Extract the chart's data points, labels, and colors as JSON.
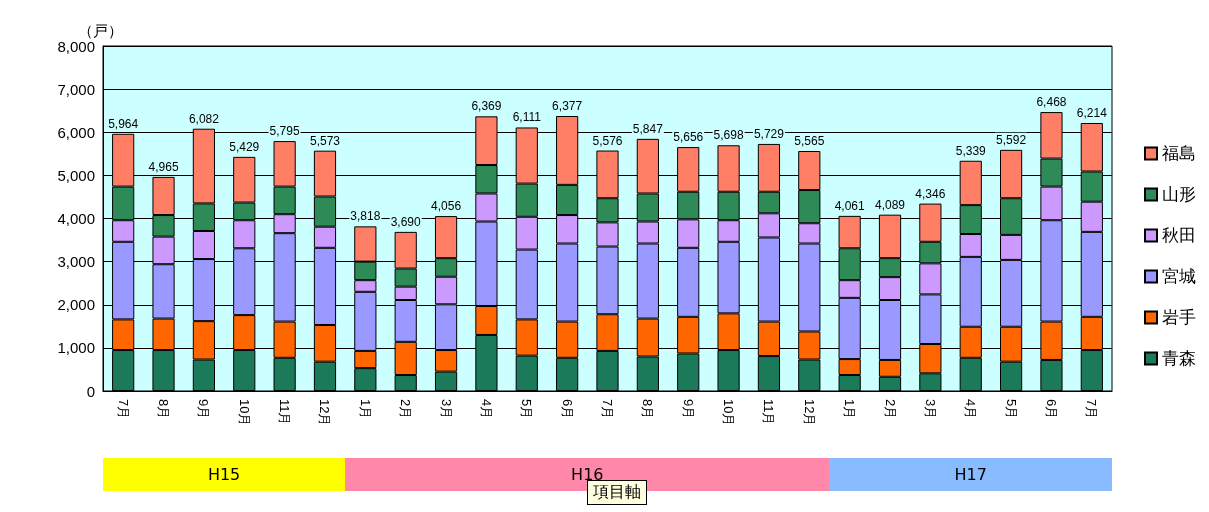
{
  "chart_data": {
    "type": "bar",
    "stacked": true,
    "ylabel": "（戸）",
    "categories": [
      "7月",
      "8月",
      "9月",
      "10月",
      "11月",
      "12月",
      "1月",
      "2月",
      "3月",
      "4月",
      "5月",
      "6月",
      "7月",
      "8月",
      "9月",
      "10月",
      "11月",
      "12月",
      "1月",
      "2月",
      "3月",
      "4月",
      "5月",
      "6月",
      "7月"
    ],
    "series": [
      {
        "name": "青森",
        "color": "#1a7a5a",
        "values": [
          950,
          950,
          730,
          950,
          770,
          680,
          530,
          370,
          450,
          1300,
          820,
          770,
          930,
          800,
          870,
          950,
          810,
          730,
          370,
          330,
          410,
          770,
          680,
          720,
          950
        ]
      },
      {
        "name": "岩手",
        "color": "#ff6600",
        "values": [
          710,
          730,
          890,
          810,
          840,
          850,
          400,
          770,
          500,
          670,
          840,
          840,
          850,
          880,
          850,
          850,
          800,
          650,
          370,
          390,
          680,
          720,
          810,
          890,
          770
        ]
      },
      {
        "name": "宮城",
        "color": "#9999ff",
        "values": [
          1800,
          1260,
          1440,
          1550,
          2050,
          1790,
          1370,
          970,
          1060,
          1960,
          1620,
          1810,
          1570,
          1740,
          1600,
          1660,
          1950,
          2040,
          1420,
          1390,
          1150,
          1620,
          1550,
          2350,
          1970
        ]
      },
      {
        "name": "秋田",
        "color": "#cc99ff",
        "values": [
          500,
          640,
          650,
          650,
          440,
          490,
          270,
          310,
          640,
          650,
          760,
          660,
          560,
          510,
          660,
          500,
          560,
          470,
          410,
          530,
          720,
          530,
          580,
          780,
          700
        ]
      },
      {
        "name": "山形",
        "color": "#2e8b57",
        "values": [
          780,
          500,
          640,
          410,
          640,
          700,
          430,
          420,
          430,
          660,
          770,
          700,
          560,
          650,
          640,
          660,
          500,
          770,
          740,
          440,
          500,
          670,
          850,
          650,
          700
        ]
      },
      {
        "name": "福島",
        "color": "#ff7f66",
        "values": [
          1224,
          885,
          1732,
          1059,
          1055,
          1063,
          818,
          850,
          976,
          1129,
          1301,
          1597,
          1106,
          1267,
          1036,
          1078,
          1109,
          905,
          751,
          1009,
          886,
          1029,
          1122,
          1078,
          1124
        ]
      }
    ],
    "totals": [
      "5,964",
      "4,965",
      "6,082",
      "5,429",
      "5,795",
      "5,573",
      "3,818",
      "3,690",
      "4,056",
      "6,369",
      "6,111",
      "6,377",
      "5,576",
      "5,847",
      "5,656",
      "5,698",
      "5,729",
      "5,565",
      "4,061",
      "4,089",
      "4,346",
      "5,339",
      "5,592",
      "6,468",
      "6,214"
    ],
    "ylim": [
      0,
      8000
    ],
    "yticks": [
      {
        "value": 0,
        "label": "0"
      },
      {
        "value": 1000,
        "label": "1,000"
      },
      {
        "value": 2000,
        "label": "2,000"
      },
      {
        "value": 3000,
        "label": "3,000"
      },
      {
        "value": 4000,
        "label": "4,000"
      },
      {
        "value": 5000,
        "label": "5,000"
      },
      {
        "value": 6000,
        "label": "6,000"
      },
      {
        "value": 7000,
        "label": "7,000"
      },
      {
        "value": 8000,
        "label": "8,000"
      }
    ],
    "grid": "y",
    "legend": "right",
    "annotations": [
      "H15",
      "H16",
      "H17",
      "項目軸"
    ]
  }
}
